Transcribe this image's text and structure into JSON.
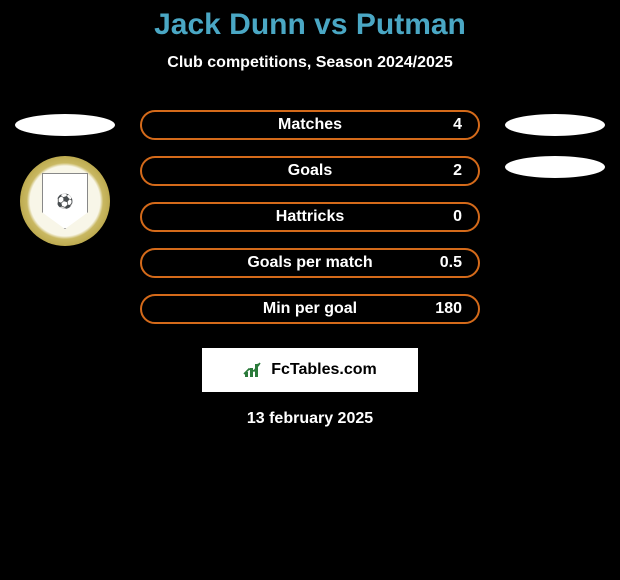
{
  "title": {
    "text": "Jack Dunn vs Putman",
    "color": "#4aa7c4",
    "fontsize": 30
  },
  "subtitle": {
    "text": "Club competitions, Season 2024/2025",
    "color": "#ffffff",
    "fontsize": 16
  },
  "ellipse": {
    "left1_color": "#ffffff",
    "right1_color": "#ffffff",
    "right2_color": "#ffffff"
  },
  "stats": {
    "border_color": "#d46a1a",
    "border_width": 2,
    "label_color": "#ffffff",
    "value_color": "#ffffff",
    "fontsize": 16,
    "row_bg": "#000000",
    "rows": [
      {
        "label": "Matches",
        "value": "4"
      },
      {
        "label": "Goals",
        "value": "2"
      },
      {
        "label": "Hattricks",
        "value": "0"
      },
      {
        "label": "Goals per match",
        "value": "0.5"
      },
      {
        "label": "Min per goal",
        "value": "180"
      }
    ]
  },
  "brand": {
    "bg_color": "#ffffff",
    "icon_color": "#2a7a3a",
    "text_color": "#000000",
    "text": "FcTables.com",
    "fontsize": 16
  },
  "date": {
    "text": "13 february 2025",
    "color": "#ffffff",
    "fontsize": 16
  }
}
